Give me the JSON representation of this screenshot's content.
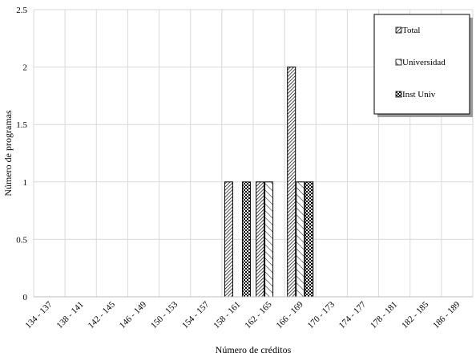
{
  "chart_data": {
    "type": "bar",
    "xlabel": "Número de créditos",
    "ylabel": "Número de programas",
    "categories": [
      "134 - 137",
      "138 - 141",
      "142 - 145",
      "146 - 149",
      "150 - 153",
      "154 - 157",
      "158 - 161",
      "162 - 165",
      "166 - 169",
      "170 - 173",
      "174 - 177",
      "178 - 181",
      "182 - 185",
      "186 - 189"
    ],
    "series": [
      {
        "name": "Total",
        "pattern": "dense-diagonal",
        "values": [
          0,
          0,
          0,
          0,
          0,
          0,
          1,
          1,
          2,
          0,
          0,
          0,
          0,
          0
        ]
      },
      {
        "name": "Universidad",
        "pattern": "wide-diagonal",
        "values": [
          0,
          0,
          0,
          0,
          0,
          0,
          0,
          1,
          1,
          0,
          0,
          0,
          0,
          0
        ]
      },
      {
        "name": "Inst Univ",
        "pattern": "checker",
        "values": [
          0,
          0,
          0,
          0,
          0,
          0,
          1,
          0,
          1,
          0,
          0,
          0,
          0,
          0
        ]
      }
    ],
    "ylim": [
      0,
      2.5
    ],
    "yticks": [
      "0",
      "0.5",
      "1",
      "1.5",
      "2",
      "2.5"
    ],
    "grid": true,
    "legend_position": "top-right",
    "colors": {
      "bar_stroke": "#000000",
      "grid": "#d9d9d9",
      "axis": "#bfbfbf"
    }
  }
}
